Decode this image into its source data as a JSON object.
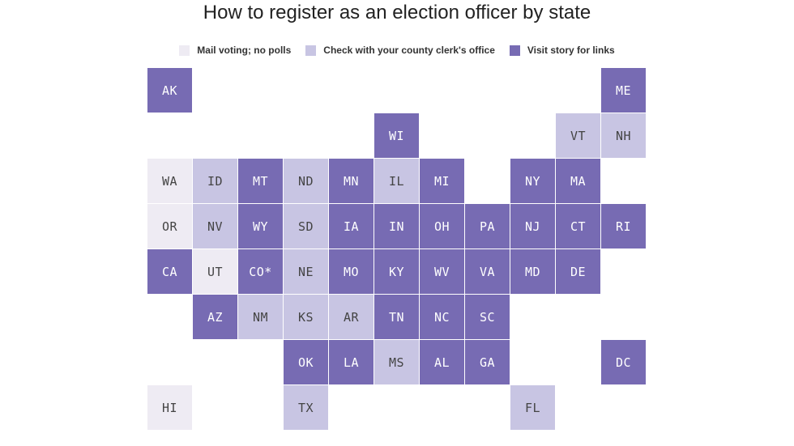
{
  "title": "How to register as an election officer by state",
  "legend": [
    {
      "key": "mail",
      "label": "Mail voting; no polls",
      "color": "#eeebf3"
    },
    {
      "key": "county",
      "label": "Check with your county clerk's office",
      "color": "#c8c5e3"
    },
    {
      "key": "story",
      "label": "Visit story for links",
      "color": "#776bb3"
    }
  ],
  "states": [
    {
      "abbr": "AK",
      "col": 0,
      "row": 0,
      "cat": "story"
    },
    {
      "abbr": "ME",
      "col": 10,
      "row": 0,
      "cat": "story"
    },
    {
      "abbr": "WI",
      "col": 5,
      "row": 1,
      "cat": "story"
    },
    {
      "abbr": "VT",
      "col": 9,
      "row": 1,
      "cat": "county"
    },
    {
      "abbr": "NH",
      "col": 10,
      "row": 1,
      "cat": "county"
    },
    {
      "abbr": "WA",
      "col": 0,
      "row": 2,
      "cat": "mail"
    },
    {
      "abbr": "ID",
      "col": 1,
      "row": 2,
      "cat": "county"
    },
    {
      "abbr": "MT",
      "col": 2,
      "row": 2,
      "cat": "story"
    },
    {
      "abbr": "ND",
      "col": 3,
      "row": 2,
      "cat": "county"
    },
    {
      "abbr": "MN",
      "col": 4,
      "row": 2,
      "cat": "story"
    },
    {
      "abbr": "IL",
      "col": 5,
      "row": 2,
      "cat": "county"
    },
    {
      "abbr": "MI",
      "col": 6,
      "row": 2,
      "cat": "story"
    },
    {
      "abbr": "NY",
      "col": 8,
      "row": 2,
      "cat": "story"
    },
    {
      "abbr": "MA",
      "col": 9,
      "row": 2,
      "cat": "story"
    },
    {
      "abbr": "OR",
      "col": 0,
      "row": 3,
      "cat": "mail"
    },
    {
      "abbr": "NV",
      "col": 1,
      "row": 3,
      "cat": "county"
    },
    {
      "abbr": "WY",
      "col": 2,
      "row": 3,
      "cat": "story"
    },
    {
      "abbr": "SD",
      "col": 3,
      "row": 3,
      "cat": "county"
    },
    {
      "abbr": "IA",
      "col": 4,
      "row": 3,
      "cat": "story"
    },
    {
      "abbr": "IN",
      "col": 5,
      "row": 3,
      "cat": "story"
    },
    {
      "abbr": "OH",
      "col": 6,
      "row": 3,
      "cat": "story"
    },
    {
      "abbr": "PA",
      "col": 7,
      "row": 3,
      "cat": "story"
    },
    {
      "abbr": "NJ",
      "col": 8,
      "row": 3,
      "cat": "story"
    },
    {
      "abbr": "CT",
      "col": 9,
      "row": 3,
      "cat": "story"
    },
    {
      "abbr": "RI",
      "col": 10,
      "row": 3,
      "cat": "story"
    },
    {
      "abbr": "CA",
      "col": 0,
      "row": 4,
      "cat": "story"
    },
    {
      "abbr": "UT",
      "col": 1,
      "row": 4,
      "cat": "mail"
    },
    {
      "abbr": "CO*",
      "col": 2,
      "row": 4,
      "cat": "story"
    },
    {
      "abbr": "NE",
      "col": 3,
      "row": 4,
      "cat": "county"
    },
    {
      "abbr": "MO",
      "col": 4,
      "row": 4,
      "cat": "story"
    },
    {
      "abbr": "KY",
      "col": 5,
      "row": 4,
      "cat": "story"
    },
    {
      "abbr": "WV",
      "col": 6,
      "row": 4,
      "cat": "story"
    },
    {
      "abbr": "VA",
      "col": 7,
      "row": 4,
      "cat": "story"
    },
    {
      "abbr": "MD",
      "col": 8,
      "row": 4,
      "cat": "story"
    },
    {
      "abbr": "DE",
      "col": 9,
      "row": 4,
      "cat": "story"
    },
    {
      "abbr": "AZ",
      "col": 1,
      "row": 5,
      "cat": "story"
    },
    {
      "abbr": "NM",
      "col": 2,
      "row": 5,
      "cat": "county"
    },
    {
      "abbr": "KS",
      "col": 3,
      "row": 5,
      "cat": "county"
    },
    {
      "abbr": "AR",
      "col": 4,
      "row": 5,
      "cat": "county"
    },
    {
      "abbr": "TN",
      "col": 5,
      "row": 5,
      "cat": "story"
    },
    {
      "abbr": "NC",
      "col": 6,
      "row": 5,
      "cat": "story"
    },
    {
      "abbr": "SC",
      "col": 7,
      "row": 5,
      "cat": "story"
    },
    {
      "abbr": "OK",
      "col": 3,
      "row": 6,
      "cat": "story"
    },
    {
      "abbr": "LA",
      "col": 4,
      "row": 6,
      "cat": "story"
    },
    {
      "abbr": "MS",
      "col": 5,
      "row": 6,
      "cat": "county"
    },
    {
      "abbr": "AL",
      "col": 6,
      "row": 6,
      "cat": "story"
    },
    {
      "abbr": "GA",
      "col": 7,
      "row": 6,
      "cat": "story"
    },
    {
      "abbr": "DC",
      "col": 10,
      "row": 6,
      "cat": "story"
    },
    {
      "abbr": "HI",
      "col": 0,
      "row": 7,
      "cat": "mail"
    },
    {
      "abbr": "TX",
      "col": 3,
      "row": 7,
      "cat": "county"
    },
    {
      "abbr": "FL",
      "col": 8,
      "row": 7,
      "cat": "county"
    }
  ]
}
